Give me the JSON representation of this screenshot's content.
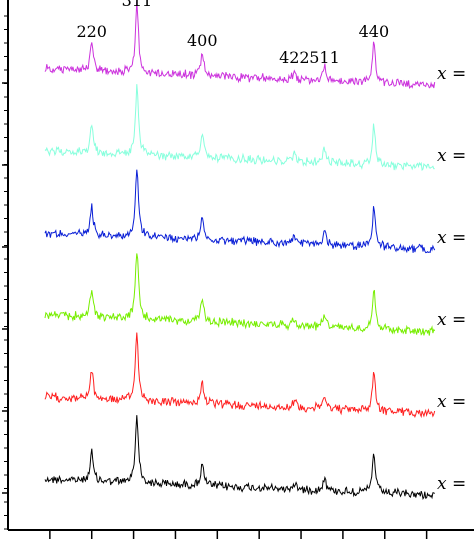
{
  "chart_data": {
    "type": "line",
    "description_axis": "stacked diffraction patterns, y offset per trace",
    "xlim": [
      28,
      79
    ],
    "peaks": [
      {
        "label": "220",
        "x": 38.0
      },
      {
        "label": "311",
        "x": 43.4
      },
      {
        "label": "400",
        "x": 51.2
      },
      {
        "label": "422",
        "x": 62.2
      },
      {
        "label": "511",
        "x": 65.8
      },
      {
        "label": "440",
        "x": 71.7
      }
    ],
    "peak_heights": [
      0.42,
      1.0,
      0.32,
      0.1,
      0.2,
      0.58
    ],
    "series": [
      {
        "color": "#000000",
        "x_label": "x ="
      },
      {
        "color": "#ff2020",
        "x_label": "x ="
      },
      {
        "color": "#77ee00",
        "x_label": "x ="
      },
      {
        "color": "#0a1fd6",
        "x_label": "x ="
      },
      {
        "color": "#88ffdd",
        "x_label": "x ="
      },
      {
        "color": "#cc33dd",
        "x_label": "x ="
      }
    ],
    "x_ticks_major": [
      33,
      38,
      43,
      48,
      53,
      58,
      63,
      68,
      73,
      78
    ],
    "grid": false,
    "legend": "none"
  }
}
